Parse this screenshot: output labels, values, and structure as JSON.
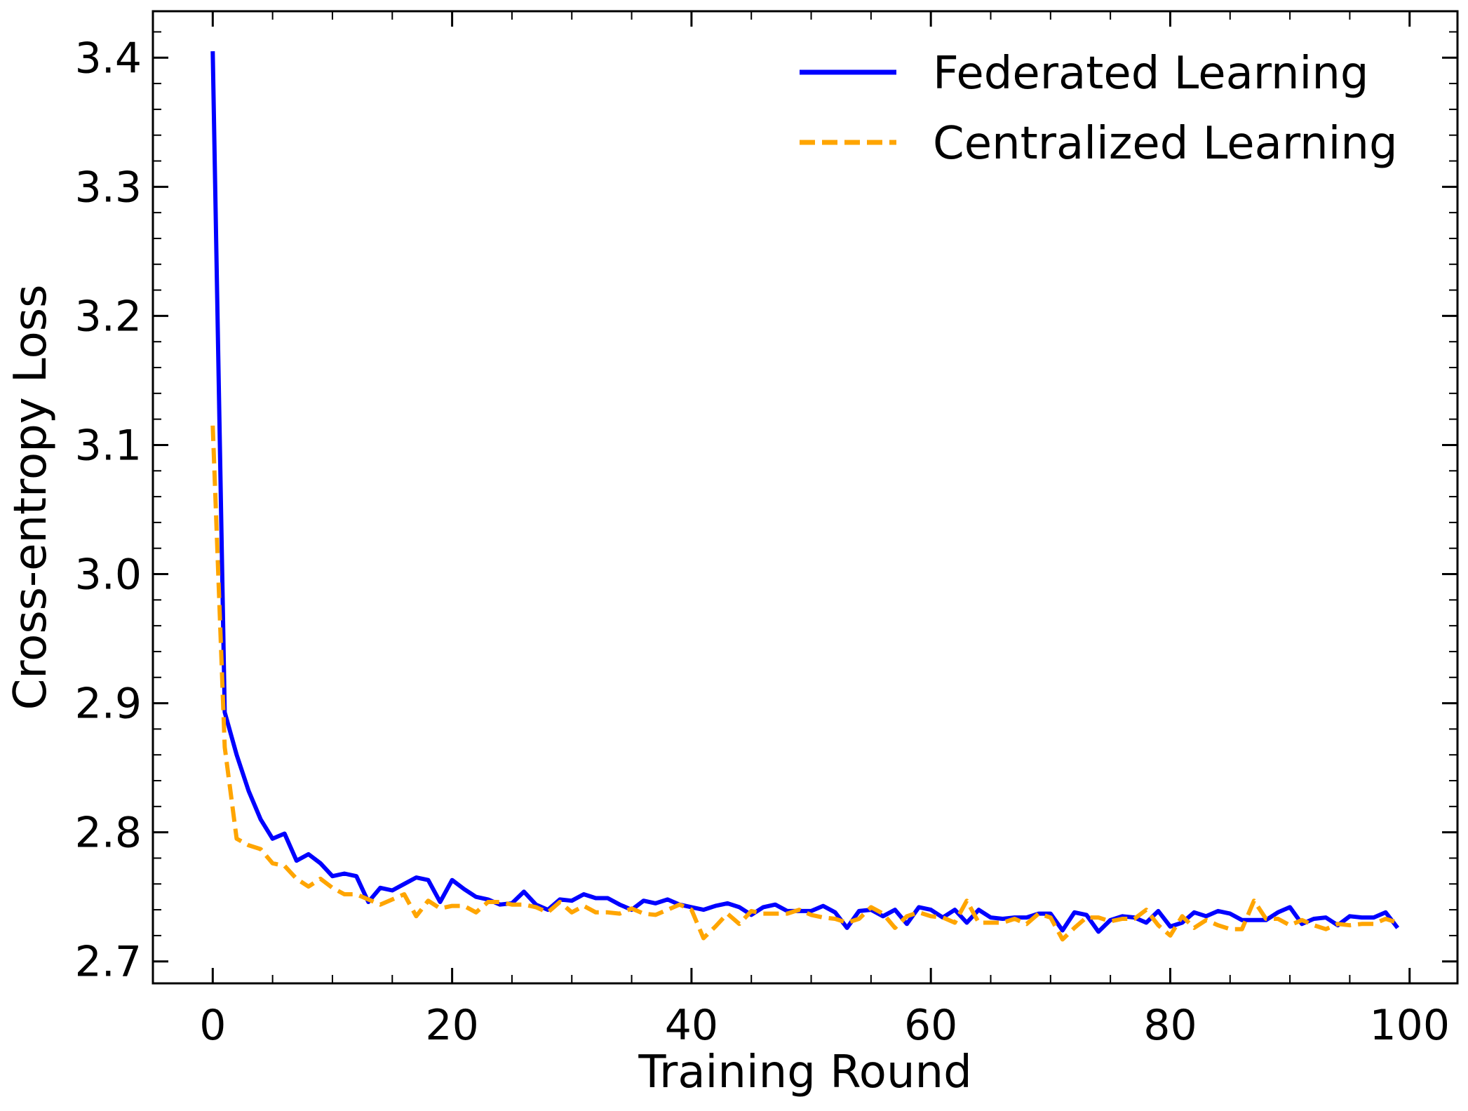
{
  "chart_data": {
    "type": "line",
    "xlabel": "Training Round",
    "ylabel": "Cross-entropy Loss",
    "xlim": [
      -5,
      104
    ],
    "ylim": [
      2.683,
      3.436
    ],
    "xticks": [
      0,
      20,
      40,
      60,
      80,
      100
    ],
    "xtick_labels": [
      "0",
      "20",
      "40",
      "60",
      "80",
      "100"
    ],
    "yticks": [
      2.7,
      2.8,
      2.9,
      3.0,
      3.1,
      3.2,
      3.3,
      3.4
    ],
    "ytick_labels": [
      "2.7",
      "2.8",
      "2.9",
      "3.0",
      "3.1",
      "3.2",
      "3.3",
      "3.4"
    ],
    "x_minor_step": 5,
    "y_minor_step": 0.02,
    "grid": false,
    "legend_position": "top-right",
    "series": [
      {
        "name": "Federated Learning",
        "color": "#0000ff",
        "style": "solid",
        "x": [
          0,
          1,
          2,
          3,
          4,
          5,
          6,
          7,
          8,
          9,
          10,
          11,
          12,
          13,
          14,
          15,
          16,
          17,
          18,
          19,
          20,
          21,
          22,
          23,
          24,
          25,
          26,
          27,
          28,
          29,
          30,
          31,
          32,
          33,
          34,
          35,
          36,
          37,
          38,
          39,
          40,
          41,
          42,
          43,
          44,
          45,
          46,
          47,
          48,
          49,
          50,
          51,
          52,
          53,
          54,
          55,
          56,
          57,
          58,
          59,
          60,
          61,
          62,
          63,
          64,
          65,
          66,
          67,
          68,
          69,
          70,
          71,
          72,
          73,
          74,
          75,
          76,
          77,
          78,
          79,
          80,
          81,
          82,
          83,
          84,
          85,
          86,
          87,
          88,
          89,
          90,
          91,
          92,
          93,
          94,
          95,
          96,
          97,
          98,
          99
        ],
        "values": [
          3.405,
          2.893,
          2.86,
          2.832,
          2.81,
          2.795,
          2.799,
          2.778,
          2.783,
          2.776,
          2.766,
          2.768,
          2.766,
          2.746,
          2.757,
          2.755,
          2.76,
          2.765,
          2.763,
          2.746,
          2.763,
          2.756,
          2.75,
          2.748,
          2.744,
          2.745,
          2.754,
          2.744,
          2.74,
          2.748,
          2.747,
          2.752,
          2.749,
          2.749,
          2.744,
          2.74,
          2.747,
          2.745,
          2.748,
          2.744,
          2.742,
          2.74,
          2.743,
          2.745,
          2.742,
          2.736,
          2.742,
          2.744,
          2.739,
          2.739,
          2.739,
          2.743,
          2.738,
          2.726,
          2.739,
          2.74,
          2.735,
          2.74,
          2.729,
          2.742,
          2.74,
          2.734,
          2.74,
          2.73,
          2.74,
          2.734,
          2.733,
          2.734,
          2.734,
          2.737,
          2.737,
          2.724,
          2.738,
          2.736,
          2.723,
          2.732,
          2.735,
          2.734,
          2.73,
          2.739,
          2.727,
          2.73,
          2.738,
          2.735,
          2.739,
          2.737,
          2.732,
          2.732,
          2.732,
          2.738,
          2.742,
          2.729,
          2.733,
          2.734,
          2.728,
          2.735,
          2.734,
          2.734,
          2.738,
          2.726
        ]
      },
      {
        "name": "Centralized Learning",
        "color": "#ffa500",
        "style": "dashed",
        "x": [
          0,
          1,
          2,
          3,
          4,
          5,
          6,
          7,
          8,
          9,
          10,
          11,
          12,
          13,
          14,
          15,
          16,
          17,
          18,
          19,
          20,
          21,
          22,
          23,
          24,
          25,
          26,
          27,
          28,
          29,
          30,
          31,
          32,
          33,
          34,
          35,
          36,
          37,
          38,
          39,
          40,
          41,
          42,
          43,
          44,
          45,
          46,
          47,
          48,
          49,
          50,
          51,
          52,
          53,
          54,
          55,
          56,
          57,
          58,
          59,
          60,
          61,
          62,
          63,
          64,
          65,
          66,
          67,
          68,
          69,
          70,
          71,
          72,
          73,
          74,
          75,
          76,
          77,
          78,
          79,
          80,
          81,
          82,
          83,
          84,
          85,
          86,
          87,
          88,
          89,
          90,
          91,
          92,
          93,
          94,
          95,
          96,
          97,
          98,
          99
        ],
        "values": [
          3.115,
          2.866,
          2.795,
          2.79,
          2.787,
          2.776,
          2.774,
          2.764,
          2.758,
          2.764,
          2.757,
          2.752,
          2.752,
          2.748,
          2.744,
          2.748,
          2.752,
          2.735,
          2.747,
          2.741,
          2.743,
          2.743,
          2.738,
          2.746,
          2.746,
          2.744,
          2.744,
          2.742,
          2.738,
          2.746,
          2.738,
          2.743,
          2.738,
          2.738,
          2.737,
          2.741,
          2.737,
          2.736,
          2.74,
          2.744,
          2.74,
          2.718,
          2.727,
          2.737,
          2.729,
          2.739,
          2.737,
          2.737,
          2.737,
          2.74,
          2.736,
          2.734,
          2.733,
          2.73,
          2.733,
          2.742,
          2.737,
          2.726,
          2.735,
          2.738,
          2.735,
          2.734,
          2.73,
          2.747,
          2.73,
          2.73,
          2.73,
          2.733,
          2.729,
          2.737,
          2.734,
          2.717,
          2.726,
          2.734,
          2.734,
          2.731,
          2.733,
          2.733,
          2.74,
          2.728,
          2.72,
          2.735,
          2.726,
          2.732,
          2.728,
          2.725,
          2.725,
          2.747,
          2.733,
          2.733,
          2.728,
          2.732,
          2.728,
          2.725,
          2.729,
          2.728,
          2.729,
          2.729,
          2.733,
          2.73
        ]
      }
    ]
  }
}
